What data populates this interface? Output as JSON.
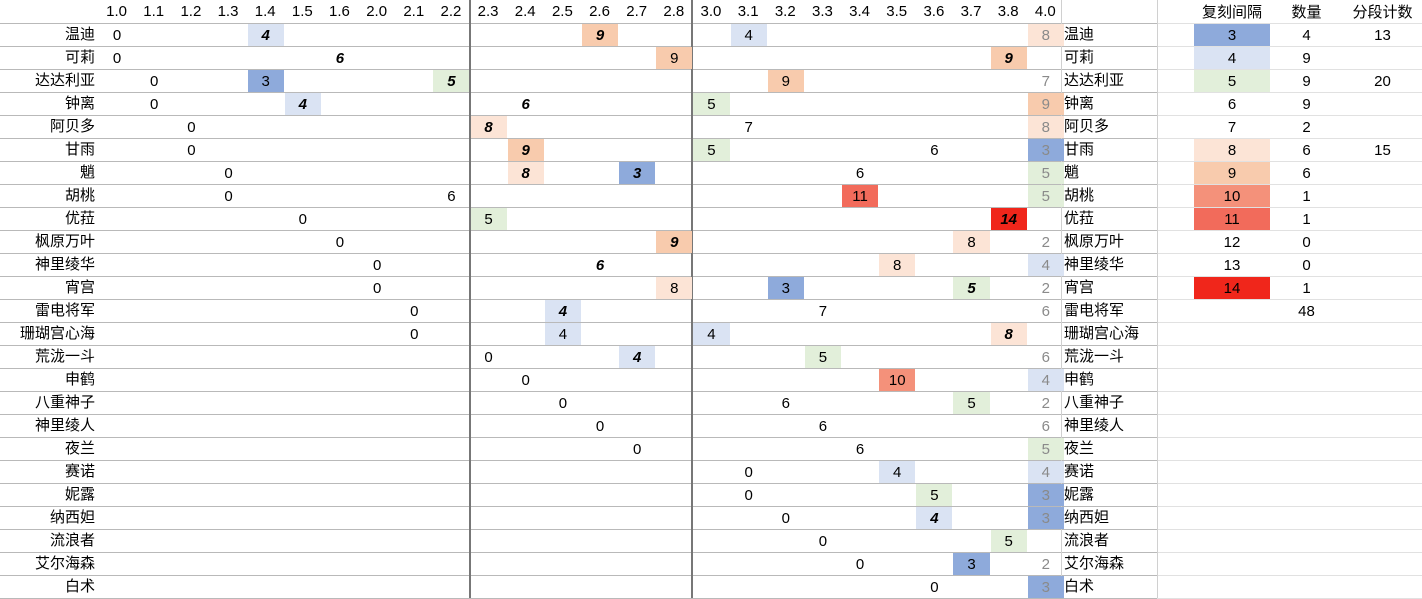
{
  "versions": [
    "1.0",
    "1.1",
    "1.2",
    "1.3",
    "1.4",
    "1.5",
    "1.6",
    "2.0",
    "2.1",
    "2.2",
    "2.3",
    "2.4",
    "2.5",
    "2.6",
    "2.7",
    "2.8",
    "3.0",
    "3.1",
    "3.2",
    "3.3",
    "3.4",
    "3.5",
    "3.6",
    "3.7",
    "3.8",
    "4.0"
  ],
  "characters": [
    {
      "name": "温迪",
      "entries": [
        [
          0,
          "0",
          "n"
        ],
        [
          4,
          "4",
          "bi"
        ],
        [
          13,
          "9",
          "bi"
        ],
        [
          17,
          "4",
          "n"
        ]
      ],
      "last": "8",
      "last_style": "gray"
    },
    {
      "name": "可莉",
      "entries": [
        [
          0,
          "0",
          "n"
        ],
        [
          6,
          "6",
          "bi"
        ],
        [
          15,
          "9",
          "n"
        ],
        [
          24,
          "9",
          "bi"
        ]
      ],
      "last": "",
      "last_style": "none"
    },
    {
      "name": "达达利亚",
      "entries": [
        [
          1,
          "0",
          "n"
        ],
        [
          4,
          "3",
          "n"
        ],
        [
          9,
          "5",
          "bi"
        ],
        [
          18,
          "9",
          "n"
        ]
      ],
      "last": "7",
      "last_style": "gray"
    },
    {
      "name": "钟离",
      "entries": [
        [
          1,
          "0",
          "n"
        ],
        [
          5,
          "4",
          "bi"
        ],
        [
          11,
          "6",
          "bi"
        ],
        [
          16,
          "5",
          "n"
        ]
      ],
      "last": "9",
      "last_style": "gray"
    },
    {
      "name": "阿贝多",
      "entries": [
        [
          2,
          "0",
          "n"
        ],
        [
          10,
          "8",
          "bi"
        ],
        [
          17,
          "7",
          "n"
        ]
      ],
      "last": "8",
      "last_style": "gray"
    },
    {
      "name": "甘雨",
      "entries": [
        [
          2,
          "0",
          "n"
        ],
        [
          11,
          "9",
          "bi"
        ],
        [
          16,
          "5",
          "n"
        ],
        [
          22,
          "6",
          "n"
        ]
      ],
      "last": "3",
      "last_style": "gray"
    },
    {
      "name": "魈",
      "entries": [
        [
          3,
          "0",
          "n"
        ],
        [
          11,
          "8",
          "bi"
        ],
        [
          14,
          "3",
          "bi"
        ],
        [
          20,
          "6",
          "n"
        ]
      ],
      "last": "5",
      "last_style": "gray"
    },
    {
      "name": "胡桃",
      "entries": [
        [
          3,
          "0",
          "n"
        ],
        [
          9,
          "6",
          "n"
        ],
        [
          20,
          "11",
          "n"
        ]
      ],
      "last": "5",
      "last_style": "gray"
    },
    {
      "name": "优菈",
      "entries": [
        [
          5,
          "0",
          "n"
        ],
        [
          10,
          "5",
          "n"
        ],
        [
          24,
          "14",
          "bi"
        ]
      ],
      "last": "",
      "last_style": "none"
    },
    {
      "name": "枫原万叶",
      "entries": [
        [
          6,
          "0",
          "n"
        ],
        [
          15,
          "9",
          "bi"
        ],
        [
          23,
          "8",
          "n"
        ]
      ],
      "last": "2",
      "last_style": "gray"
    },
    {
      "name": "神里绫华",
      "entries": [
        [
          7,
          "0",
          "n"
        ],
        [
          13,
          "6",
          "bi"
        ],
        [
          21,
          "8",
          "n"
        ]
      ],
      "last": "4",
      "last_style": "gray"
    },
    {
      "name": "宵宫",
      "entries": [
        [
          7,
          "0",
          "n"
        ],
        [
          15,
          "8",
          "n"
        ],
        [
          18,
          "3",
          "n"
        ],
        [
          23,
          "5",
          "bi"
        ]
      ],
      "last": "2",
      "last_style": "gray"
    },
    {
      "name": "雷电将军",
      "entries": [
        [
          8,
          "0",
          "n"
        ],
        [
          12,
          "4",
          "bi"
        ],
        [
          19,
          "7",
          "n"
        ]
      ],
      "last": "6",
      "last_style": "gray"
    },
    {
      "name": "珊瑚宫心海",
      "entries": [
        [
          8,
          "0",
          "n"
        ],
        [
          12,
          "4",
          "n"
        ],
        [
          16,
          "4",
          "n"
        ],
        [
          24,
          "8",
          "bi"
        ]
      ],
      "last": "",
      "last_style": "none"
    },
    {
      "name": "荒泷一斗",
      "entries": [
        [
          10,
          "0",
          "n"
        ],
        [
          14,
          "4",
          "bi"
        ],
        [
          19,
          "5",
          "n"
        ]
      ],
      "last": "6",
      "last_style": "gray"
    },
    {
      "name": "申鹤",
      "entries": [
        [
          11,
          "0",
          "n"
        ],
        [
          21,
          "10",
          "n"
        ]
      ],
      "last": "4",
      "last_style": "gray"
    },
    {
      "name": "八重神子",
      "entries": [
        [
          12,
          "0",
          "n"
        ],
        [
          18,
          "6",
          "n"
        ],
        [
          23,
          "5",
          "n"
        ]
      ],
      "last": "2",
      "last_style": "gray"
    },
    {
      "name": "神里绫人",
      "entries": [
        [
          13,
          "0",
          "n"
        ],
        [
          19,
          "6",
          "n"
        ]
      ],
      "last": "6",
      "last_style": "gray"
    },
    {
      "name": "夜兰",
      "entries": [
        [
          14,
          "0",
          "n"
        ],
        [
          20,
          "6",
          "n"
        ]
      ],
      "last": "5",
      "last_style": "gray"
    },
    {
      "name": "赛诺",
      "entries": [
        [
          17,
          "0",
          "n"
        ],
        [
          21,
          "4",
          "n"
        ]
      ],
      "last": "4",
      "last_style": "gray"
    },
    {
      "name": "妮露",
      "entries": [
        [
          17,
          "0",
          "n"
        ],
        [
          22,
          "5",
          "n"
        ]
      ],
      "last": "3",
      "last_style": "gray"
    },
    {
      "name": "纳西妲",
      "entries": [
        [
          18,
          "0",
          "n"
        ],
        [
          22,
          "4",
          "bi"
        ]
      ],
      "last": "3",
      "last_style": "gray"
    },
    {
      "name": "流浪者",
      "entries": [
        [
          19,
          "0",
          "n"
        ],
        [
          24,
          "5",
          "n"
        ]
      ],
      "last": "",
      "last_style": "none"
    },
    {
      "name": "艾尔海森",
      "entries": [
        [
          20,
          "0",
          "n"
        ],
        [
          23,
          "3",
          "n"
        ]
      ],
      "last": "2",
      "last_style": "gray"
    },
    {
      "name": "白术",
      "entries": [
        [
          22,
          "0",
          "n"
        ]
      ],
      "last": "3",
      "last_style": "gray"
    }
  ],
  "summary": {
    "headers": [
      "复刻间隔",
      "数量",
      "分段计数"
    ],
    "rows": [
      {
        "interval": "3",
        "count": "4",
        "segment": "13"
      },
      {
        "interval": "4",
        "count": "9",
        "segment": ""
      },
      {
        "interval": "5",
        "count": "9",
        "segment": "20"
      },
      {
        "interval": "6",
        "count": "9",
        "segment": ""
      },
      {
        "interval": "7",
        "count": "2",
        "segment": ""
      },
      {
        "interval": "8",
        "count": "6",
        "segment": "15"
      },
      {
        "interval": "9",
        "count": "6",
        "segment": ""
      },
      {
        "interval": "10",
        "count": "1",
        "segment": ""
      },
      {
        "interval": "11",
        "count": "1",
        "segment": ""
      },
      {
        "interval": "12",
        "count": "0",
        "segment": ""
      },
      {
        "interval": "13",
        "count": "0",
        "segment": ""
      },
      {
        "interval": "14",
        "count": "1",
        "segment": ""
      },
      {
        "interval": "",
        "count": "48",
        "segment": ""
      }
    ]
  },
  "colors": {
    "3": "#8eaadb",
    "4": "#dae3f3",
    "5": "#e2efda",
    "6": "#ffffff",
    "7": "#ffffff",
    "8": "#fce4d6",
    "9": "#f8cbad",
    "10": "#f4917a",
    "11": "#f26b5b",
    "12": "#ffffff",
    "13": "#ffffff",
    "14": "#f0261b",
    "gray_text": "#8a8a8a",
    "grid": "#b9b9b9",
    "divider": "#777777"
  }
}
